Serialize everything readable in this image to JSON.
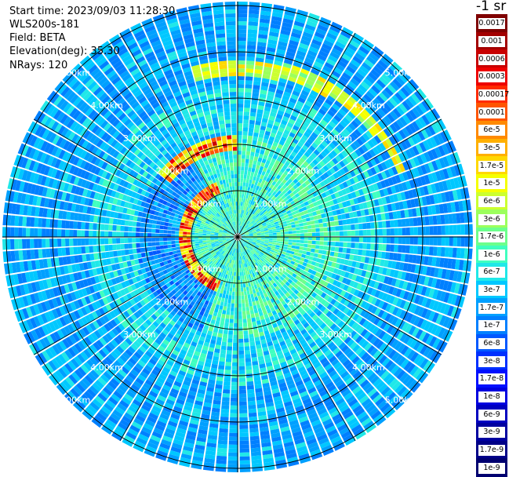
{
  "header": {
    "start_time": "Start time: 2023/09/03 11:28:30",
    "instrument": "WLS200s-181",
    "field": "Field: BETA",
    "elevation": "Elevation(deg): 35.30",
    "nrays": "NRays: 120"
  },
  "plot": {
    "range_ring_labels": [
      "1.00km",
      "2.00km",
      "3.00km",
      "4.00km",
      "5.00km"
    ],
    "ray_count": 120
  },
  "colorbar": {
    "unit_label": "-1 sr",
    "labels": [
      "0.0017",
      "0.001",
      "0.0006",
      "0.0003",
      "0.00017",
      "0.0001",
      "6e-5",
      "3e-5",
      "1.7e-5",
      "1e-5",
      "6e-6",
      "3e-6",
      "1.7e-6",
      "1e-6",
      "6e-7",
      "3e-7",
      "1.7e-7",
      "1e-7",
      "6e-8",
      "3e-8",
      "1.7e-8",
      "1e-8",
      "6e-9",
      "3e-9",
      "1.7e-9",
      "1e-9"
    ],
    "colors": [
      "#7f0000",
      "#a30000",
      "#c80000",
      "#ee0000",
      "#ff2a00",
      "#ff5500",
      "#ff8a00",
      "#ffb000",
      "#ffd800",
      "#f5ff00",
      "#ccff30",
      "#9cff5c",
      "#6cff8c",
      "#40ffbf",
      "#20e8e8",
      "#00c8ff",
      "#00a0ff",
      "#0080ff",
      "#0058ff",
      "#0030ff",
      "#0010ff",
      "#0000e0",
      "#0000c0",
      "#0000a0",
      "#000088",
      "#000070"
    ]
  }
}
